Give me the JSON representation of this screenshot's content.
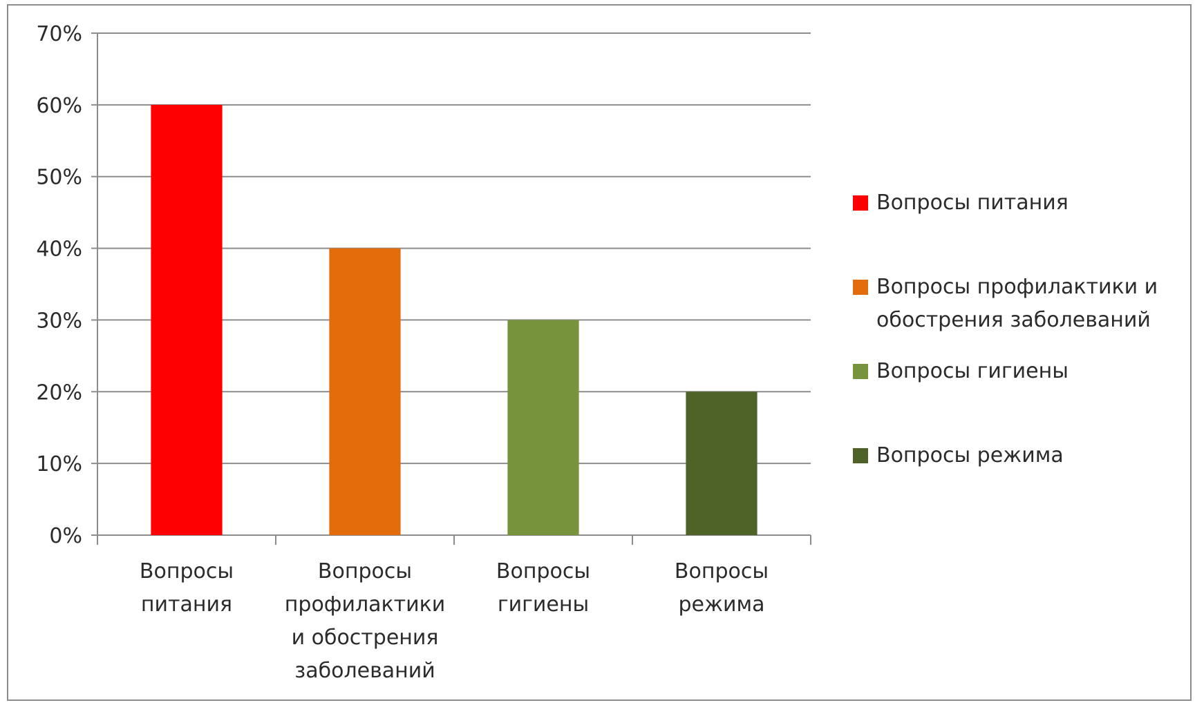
{
  "chart_data": {
    "type": "bar",
    "categories": [
      [
        "Вопросы",
        "питания"
      ],
      [
        "Вопросы",
        "профилактики",
        "и обострения",
        "заболеваний"
      ],
      [
        "Вопросы",
        "гигиены"
      ],
      [
        "Вопросы",
        "режима"
      ]
    ],
    "values": [
      60,
      40,
      30,
      20
    ],
    "colors": [
      "#ff0000",
      "#e36c0a",
      "#77933c",
      "#4f6228"
    ],
    "ylim": [
      0,
      70
    ],
    "yticks": [
      0,
      10,
      20,
      30,
      40,
      50,
      60,
      70
    ],
    "ytick_suffix": "%",
    "grid": true,
    "legend_position": "right",
    "legend": [
      {
        "label": "Вопросы питания",
        "color": "#ff0000"
      },
      {
        "label": "Вопросы профилактики и обострения заболеваний",
        "color": "#e36c0a"
      },
      {
        "label": "Вопросы гигиены",
        "color": "#77933c"
      },
      {
        "label": "Вопросы режима",
        "color": "#4f6228"
      }
    ]
  }
}
